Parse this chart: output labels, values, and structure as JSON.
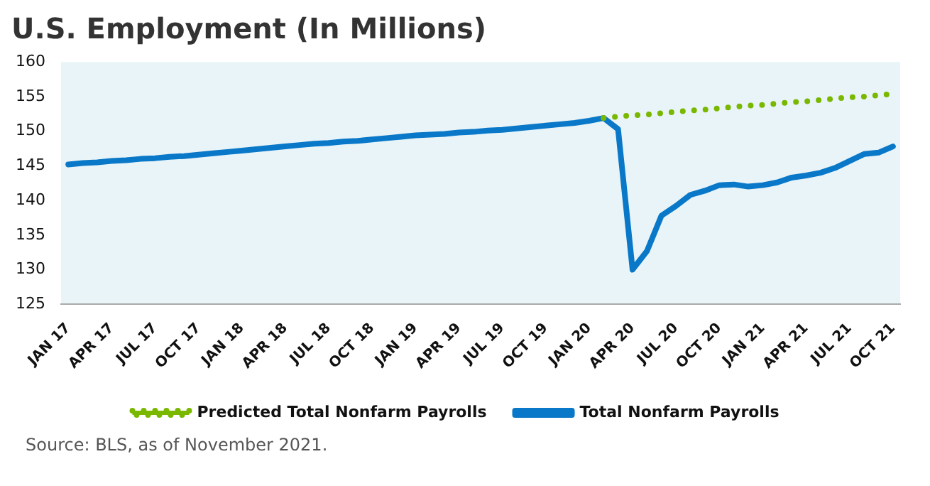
{
  "chart_data": {
    "type": "line",
    "title": "U.S. Employment (In Millions)",
    "categories": [
      "JAN 17",
      null,
      null,
      "APR 17",
      null,
      null,
      "JUL 17",
      null,
      null,
      "OCT 17",
      null,
      null,
      "JAN 18",
      null,
      null,
      "APR 18",
      null,
      null,
      "JUL 18",
      null,
      null,
      "OCT 18",
      null,
      null,
      "JAN 19",
      null,
      null,
      "APR 19",
      null,
      null,
      "JUL 19",
      null,
      null,
      "OCT 19",
      null,
      null,
      "JAN 20",
      null,
      null,
      "APR 20",
      null,
      null,
      "JUL 20",
      null,
      null,
      "OCT 20",
      null,
      null,
      "JAN 21",
      null,
      null,
      "APR 21",
      null,
      null,
      "JUL 21",
      null,
      null,
      "OCT 21"
    ],
    "series": [
      {
        "name": "Predicted Total Nonfarm Payrolls",
        "color": "#7ab800",
        "line_style": "dotted",
        "values": [
          null,
          null,
          null,
          null,
          null,
          null,
          null,
          null,
          null,
          null,
          null,
          null,
          null,
          null,
          null,
          null,
          null,
          null,
          null,
          null,
          null,
          null,
          null,
          null,
          null,
          null,
          null,
          null,
          null,
          null,
          null,
          null,
          null,
          null,
          null,
          null,
          null,
          151.9,
          152.1,
          152.3,
          152.4,
          152.6,
          152.8,
          153.0,
          153.1,
          153.3,
          153.5,
          153.7,
          153.8,
          154.0,
          154.2,
          154.3,
          154.5,
          154.7,
          154.9,
          155.0,
          155.2,
          155.4
        ]
      },
      {
        "name": "Total Nonfarm Payrolls",
        "color": "#0a78c8",
        "line_style": "solid",
        "values": [
          145.2,
          145.4,
          145.5,
          145.7,
          145.8,
          146.0,
          146.1,
          146.3,
          146.4,
          146.6,
          146.8,
          147.0,
          147.2,
          147.4,
          147.6,
          147.8,
          148.0,
          148.2,
          148.3,
          148.5,
          148.6,
          148.8,
          149.0,
          149.2,
          149.4,
          149.5,
          149.6,
          149.8,
          149.9,
          150.1,
          150.2,
          150.4,
          150.6,
          150.8,
          151.0,
          151.2,
          151.5,
          151.9,
          150.3,
          130.0,
          132.7,
          137.8,
          139.2,
          140.8,
          141.4,
          142.2,
          142.3,
          142.0,
          142.2,
          142.6,
          143.3,
          143.6,
          144.0,
          144.7,
          145.7,
          146.7,
          146.9,
          147.8
        ]
      }
    ],
    "ylim": [
      125,
      160
    ],
    "yticks": [
      125,
      130,
      135,
      140,
      145,
      150,
      155,
      160
    ],
    "grid": false,
    "legend": "bottom",
    "marker": "none",
    "annotations": [
      "Source: BLS, as of November 2021."
    ]
  }
}
